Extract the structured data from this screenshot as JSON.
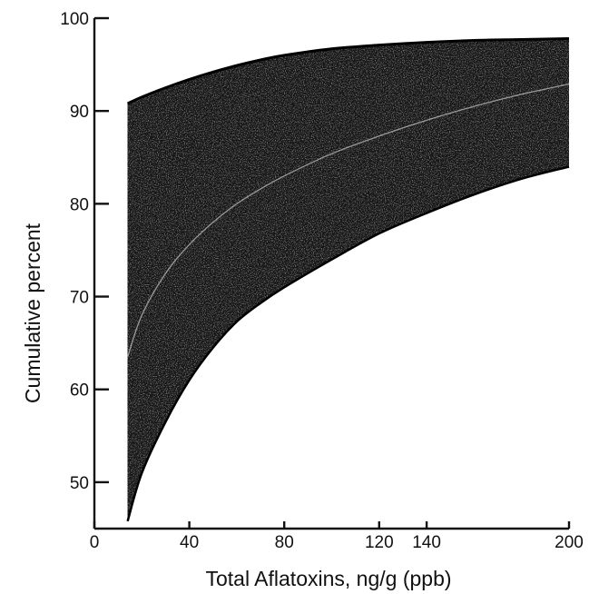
{
  "chart_data": {
    "type": "area",
    "title": "",
    "xlabel": "Total Aflatoxins, ng/g (ppb)",
    "ylabel": "Cumulative percent",
    "xlim": [
      0,
      200
    ],
    "ylim": [
      45,
      100
    ],
    "x_ticks": [
      {
        "value": 0,
        "label": "0"
      },
      {
        "value": 40,
        "label": "40"
      },
      {
        "value": 80,
        "label": "80"
      },
      {
        "value": 120,
        "label": "120"
      },
      {
        "value": 140,
        "label": "140"
      },
      {
        "value": 200,
        "label": "200"
      }
    ],
    "y_ticks": [
      {
        "value": 50,
        "label": "50"
      },
      {
        "value": 60,
        "label": "60"
      },
      {
        "value": 70,
        "label": "70"
      },
      {
        "value": 80,
        "label": "80"
      },
      {
        "value": 90,
        "label": "90"
      },
      {
        "value": 100,
        "label": "100"
      }
    ],
    "grid": false,
    "band_color": "#141414",
    "center_line_color": "#9a9a9a",
    "series": [
      {
        "role": "upper",
        "x": [
          14,
          20,
          30,
          40,
          50,
          60,
          70,
          80,
          100,
          120,
          140,
          160,
          180,
          200
        ],
        "y": [
          90.8,
          91.5,
          92.5,
          93.4,
          94.2,
          94.9,
          95.5,
          96.0,
          96.7,
          97.1,
          97.4,
          97.6,
          97.7,
          97.8
        ]
      },
      {
        "role": "center",
        "x": [
          14,
          20,
          30,
          40,
          50,
          60,
          70,
          80,
          100,
          120,
          140,
          160,
          180,
          200
        ],
        "y": [
          63.5,
          68.0,
          72.5,
          75.6,
          78.0,
          80.0,
          81.6,
          83.0,
          85.4,
          87.3,
          89.0,
          90.5,
          91.8,
          92.9
        ]
      },
      {
        "role": "lower",
        "x": [
          14,
          20,
          30,
          40,
          50,
          60,
          70,
          80,
          100,
          120,
          140,
          160,
          180,
          200
        ],
        "y": [
          45.8,
          51.0,
          56.5,
          61.0,
          64.5,
          67.3,
          69.3,
          71.0,
          74.0,
          76.8,
          79.0,
          81.0,
          82.7,
          84.0
        ]
      }
    ]
  }
}
